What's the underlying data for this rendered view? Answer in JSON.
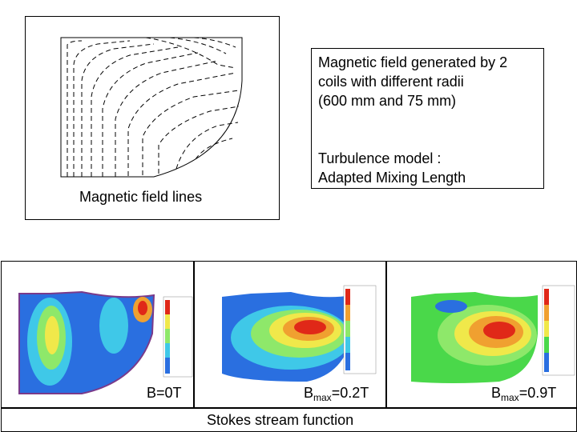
{
  "field_lines_panel": {
    "label": "Magnetic field lines"
  },
  "info_box": {
    "line1": "Magnetic field generated by 2",
    "line2": "coils with different radii",
    "line3": "(600 mm and 75 mm)",
    "line4": "Turbulence model :",
    "line5": "Adapted Mixing Length"
  },
  "plots": [
    {
      "label": "B=0T"
    },
    {
      "label_main": "B",
      "label_sub": "max",
      "label_value": "=0.2T"
    },
    {
      "label_main": "B",
      "label_sub": "max",
      "label_value": "=0.9T"
    }
  ],
  "caption": "Stokes stream function"
}
